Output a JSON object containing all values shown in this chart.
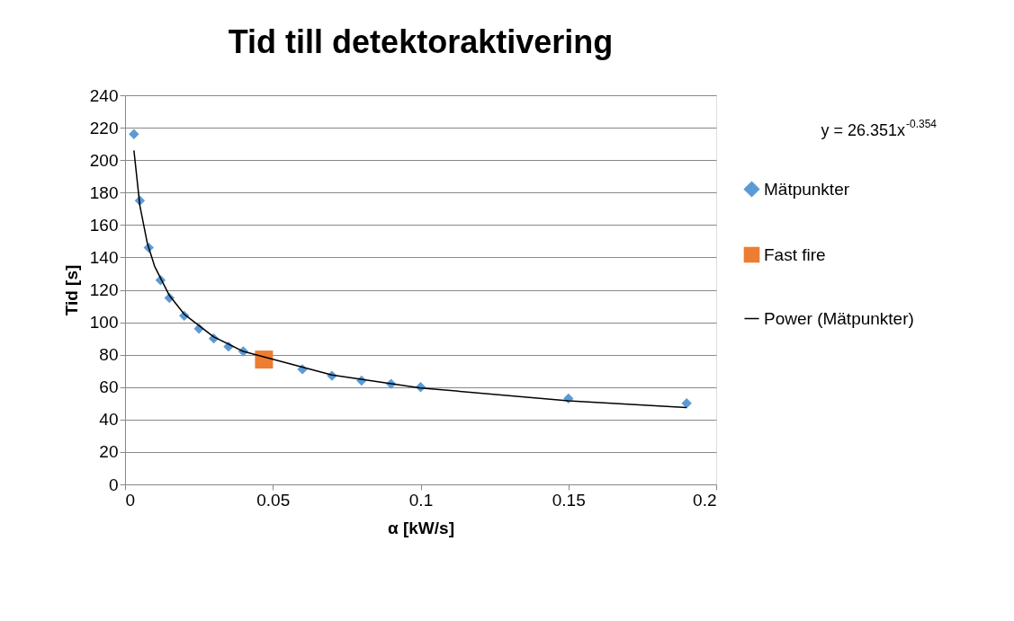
{
  "chart_data": {
    "type": "scatter",
    "title": "Tid till  detektoraktivering",
    "xlabel": "α [kW/s]",
    "ylabel": "Tid [s]",
    "xlim": [
      0,
      0.2
    ],
    "xticks": [
      0,
      0.05,
      0.1,
      0.15,
      0.2
    ],
    "ylim": [
      0,
      240
    ],
    "yticks": [
      0,
      20,
      40,
      60,
      80,
      100,
      120,
      140,
      160,
      180,
      200,
      220,
      240
    ],
    "grid": "y",
    "legend": "right",
    "annotations": [
      "y = 26.351x$^{-0.354}$"
    ],
    "series": [
      {
        "name": "Mätpunkter",
        "type": "scatter",
        "marker": "diamond",
        "color": "#5b9bd5",
        "x": [
          0.003,
          0.005,
          0.008,
          0.012,
          0.015,
          0.02,
          0.025,
          0.03,
          0.035,
          0.04,
          0.06,
          0.07,
          0.08,
          0.09,
          0.1,
          0.15,
          0.19
        ],
        "values": [
          216,
          175,
          146,
          126,
          115,
          104,
          96,
          90,
          85,
          82,
          71,
          67,
          64,
          62,
          60,
          53,
          50
        ]
      },
      {
        "name": "Fast fire",
        "type": "scatter",
        "marker": "square",
        "color": "#ed7d31",
        "x": [
          0.047
        ],
        "values": [
          77
        ]
      },
      {
        "name": "Power (Mätpunkter)",
        "type": "line",
        "color": "#000000",
        "x": [
          0.003,
          0.005,
          0.0075,
          0.01,
          0.015,
          0.02,
          0.03,
          0.04,
          0.07,
          0.1,
          0.15,
          0.19
        ],
        "values": [
          206,
          172,
          149,
          134.5,
          116.5,
          105,
          91,
          82,
          67.5,
          59.5,
          51.6,
          47.4
        ]
      }
    ]
  }
}
